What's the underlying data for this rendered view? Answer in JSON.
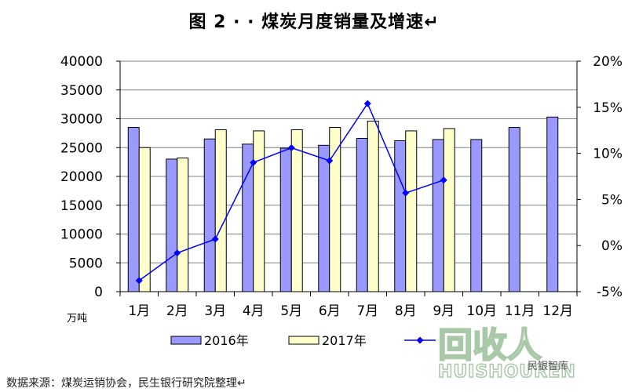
{
  "title": "图 2 · · 煤炭月度销量及增速↵",
  "source_note": "数据来源：煤炭运销协会，民生银行研究院整理↵",
  "watermark": {
    "main": "回收人",
    "sub": "HUISHOUREN"
  },
  "wechat_label": "民银智库",
  "chart_data": {
    "type": "bar",
    "categories": [
      "1月",
      "2月",
      "3月",
      "4月",
      "5月",
      "6月",
      "7月",
      "8月",
      "9月",
      "10月",
      "11月",
      "12月"
    ],
    "unit_label": "万吨",
    "series": [
      {
        "name": "2016年",
        "type": "bar",
        "axis": "left",
        "color": "#9999ff",
        "values": [
          28500,
          23000,
          26500,
          25600,
          24900,
          25400,
          26600,
          26200,
          26400,
          26400,
          28500,
          30300
        ]
      },
      {
        "name": "2017年",
        "type": "bar",
        "axis": "left",
        "color": "#ffffcc",
        "values": [
          25000,
          23200,
          28100,
          27900,
          28100,
          28500,
          29600,
          27900,
          28300,
          null,
          null,
          null
        ]
      },
      {
        "name": "",
        "type": "line",
        "axis": "right",
        "color": "#0000ff",
        "values": [
          -3.8,
          -0.8,
          0.7,
          9.0,
          10.6,
          9.2,
          15.4,
          5.7,
          7.1,
          null,
          null,
          null
        ]
      }
    ],
    "ylim_left": [
      0,
      40000
    ],
    "yticks_left": [
      "40000",
      "35000",
      "30000",
      "25000",
      "20000",
      "15000",
      "10000",
      "5000",
      "0"
    ],
    "ylim_right": [
      -5,
      20
    ],
    "yticks_right": [
      "20%",
      "15%",
      "10%",
      "5%",
      "0%",
      "-5%"
    ],
    "grid": true,
    "legend_position": "bottom"
  }
}
